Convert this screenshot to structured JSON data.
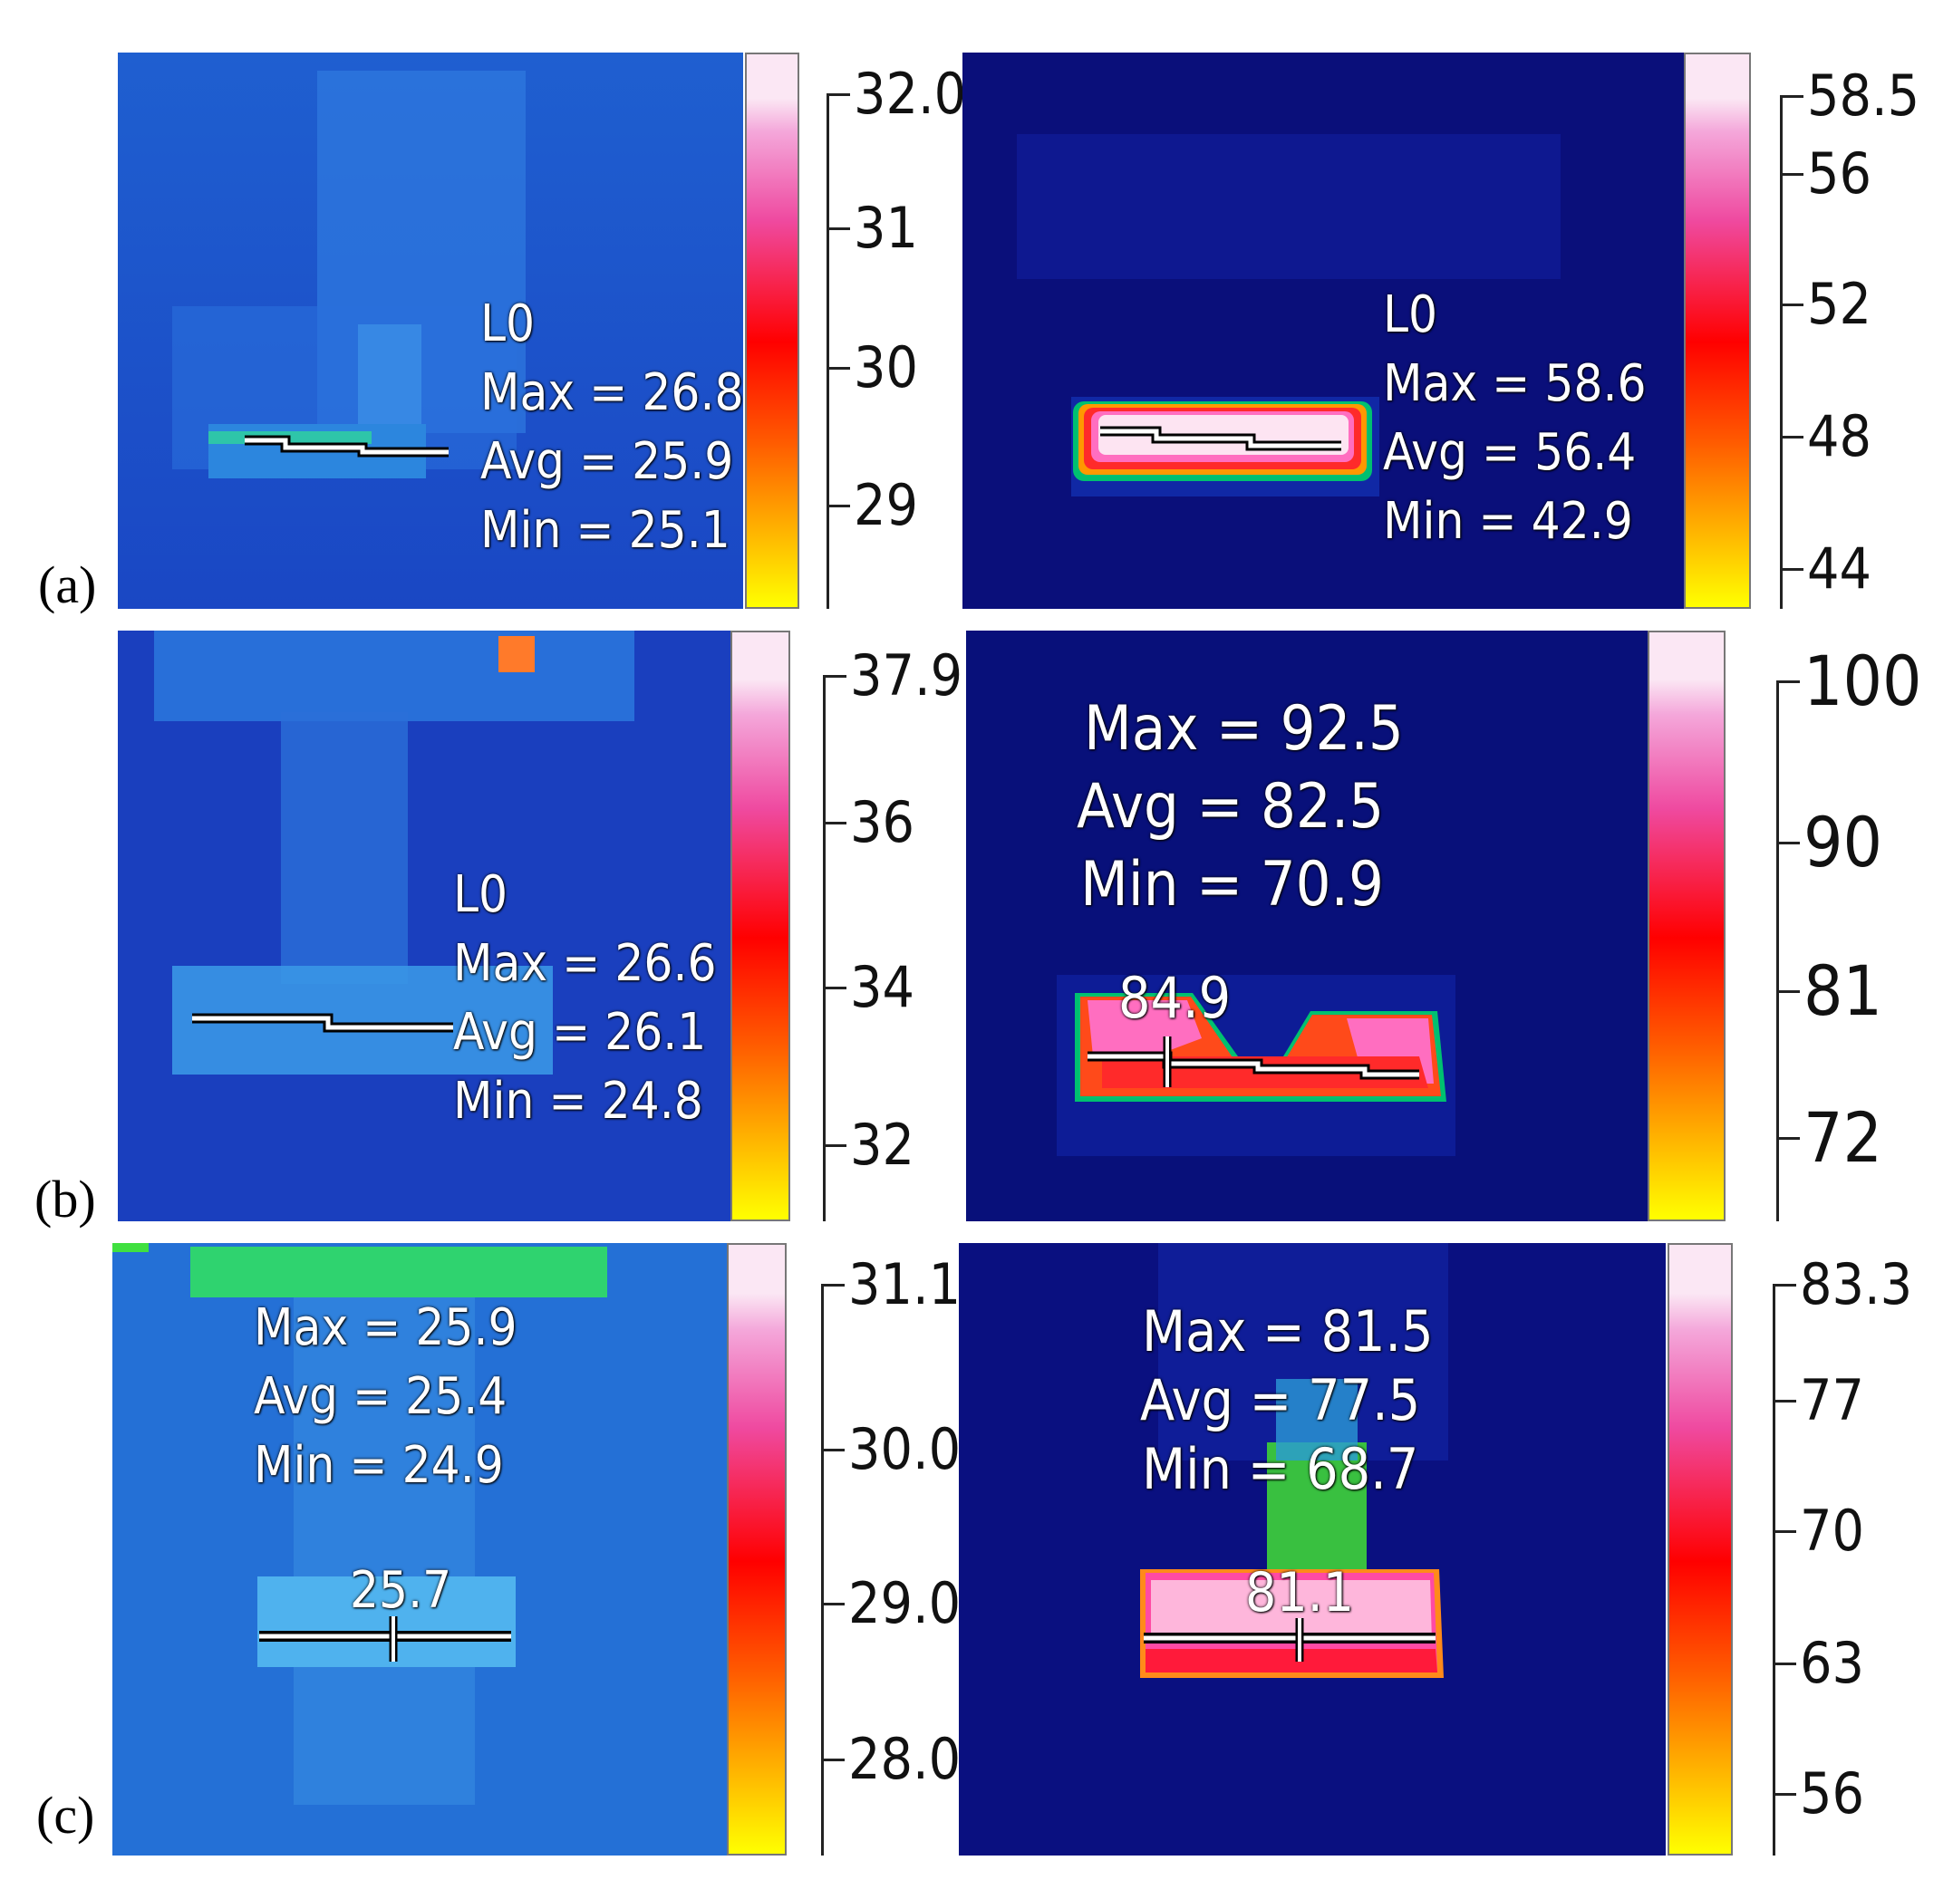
{
  "rows": [
    {
      "label": "(a)",
      "left": {
        "readout": [
          "L0",
          "Max = 26.8",
          "Avg = 25.9",
          "Min = 25.1"
        ],
        "scale": [
          "32.0",
          "31",
          "30",
          "29"
        ]
      },
      "right": {
        "readout": [
          "L0",
          "Max = 58.6",
          "Avg = 56.4",
          "Min = 42.9"
        ],
        "scale": [
          "58.5",
          "56",
          "52",
          "48",
          "44"
        ]
      }
    },
    {
      "label": "(b)",
      "left": {
        "readout": [
          "L0",
          "Max = 26.6",
          "Avg = 26.1",
          "Min = 24.8"
        ],
        "scale": [
          "37.9",
          "36",
          "34",
          "32"
        ]
      },
      "right": {
        "readout": [
          "Max = 92.5",
          "Avg = 82.5",
          "Min = 70.9"
        ],
        "spot": "84.9",
        "scale": [
          "100",
          "90",
          "81",
          "72"
        ]
      }
    },
    {
      "label": "(c)",
      "left": {
        "readout": [
          "Max = 25.9",
          "Avg = 25.4",
          "Min = 24.9"
        ],
        "spot": "25.7",
        "scale": [
          "31.1",
          "30.0",
          "29.0",
          "28.0"
        ]
      },
      "right": {
        "readout": [
          "Max = 81.5",
          "Avg = 77.5",
          "Min = 68.7"
        ],
        "spot": "81.1",
        "scale": [
          "83.3",
          "77",
          "70",
          "63",
          "56"
        ]
      }
    }
  ]
}
